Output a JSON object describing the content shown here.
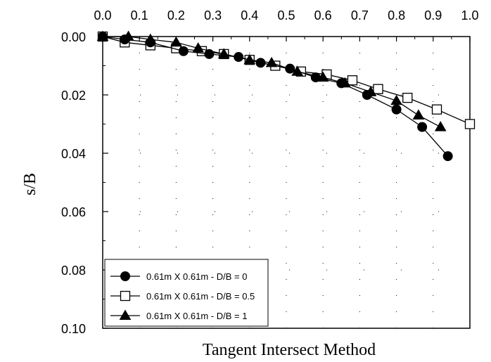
{
  "chart_data": {
    "type": "line",
    "xlabel": "Tangent Intersect Method",
    "ylabel": "s/B",
    "xlim": [
      0.0,
      1.0
    ],
    "ylim": [
      0.0,
      0.1
    ],
    "x_axis_position": "top",
    "y_axis_inverted": true,
    "x_ticks": [
      "0.0",
      "0.1",
      "0.2",
      "0.3",
      "0.4",
      "0.5",
      "0.6",
      "0.7",
      "0.8",
      "0.9",
      "1.0"
    ],
    "y_ticks": [
      "0.00",
      "0.02",
      "0.04",
      "0.06",
      "0.08",
      "0.10"
    ],
    "grid": "dotted",
    "legend_position": "bottom-left",
    "series": [
      {
        "name": "0.61m X 0.61m - D/B = 0",
        "marker": "filled-circle",
        "color": "#000000",
        "x": [
          0.0,
          0.06,
          0.13,
          0.22,
          0.29,
          0.37,
          0.43,
          0.51,
          0.58,
          0.65,
          0.72,
          0.8,
          0.87,
          0.94
        ],
        "y": [
          0.0,
          0.001,
          0.002,
          0.005,
          0.006,
          0.007,
          0.009,
          0.011,
          0.014,
          0.016,
          0.02,
          0.025,
          0.031,
          0.041
        ]
      },
      {
        "name": "0.61m X 0.61m - D/B = 0.5",
        "marker": "open-square",
        "color": "#000000",
        "x": [
          0.0,
          0.06,
          0.13,
          0.2,
          0.27,
          0.33,
          0.4,
          0.47,
          0.54,
          0.61,
          0.68,
          0.75,
          0.83,
          0.91,
          1.0
        ],
        "y": [
          0.0,
          0.002,
          0.003,
          0.004,
          0.005,
          0.006,
          0.008,
          0.01,
          0.012,
          0.013,
          0.015,
          0.018,
          0.021,
          0.025,
          0.03
        ]
      },
      {
        "name": "0.61m X 0.61m - D/B = 1",
        "marker": "filled-triangle",
        "color": "#000000",
        "x": [
          0.0,
          0.07,
          0.13,
          0.2,
          0.26,
          0.33,
          0.4,
          0.46,
          0.53,
          0.6,
          0.66,
          0.73,
          0.8,
          0.86,
          0.92
        ],
        "y": [
          0.0,
          0.0,
          0.001,
          0.002,
          0.004,
          0.006,
          0.008,
          0.009,
          0.012,
          0.014,
          0.016,
          0.019,
          0.022,
          0.027,
          0.031
        ]
      }
    ]
  }
}
